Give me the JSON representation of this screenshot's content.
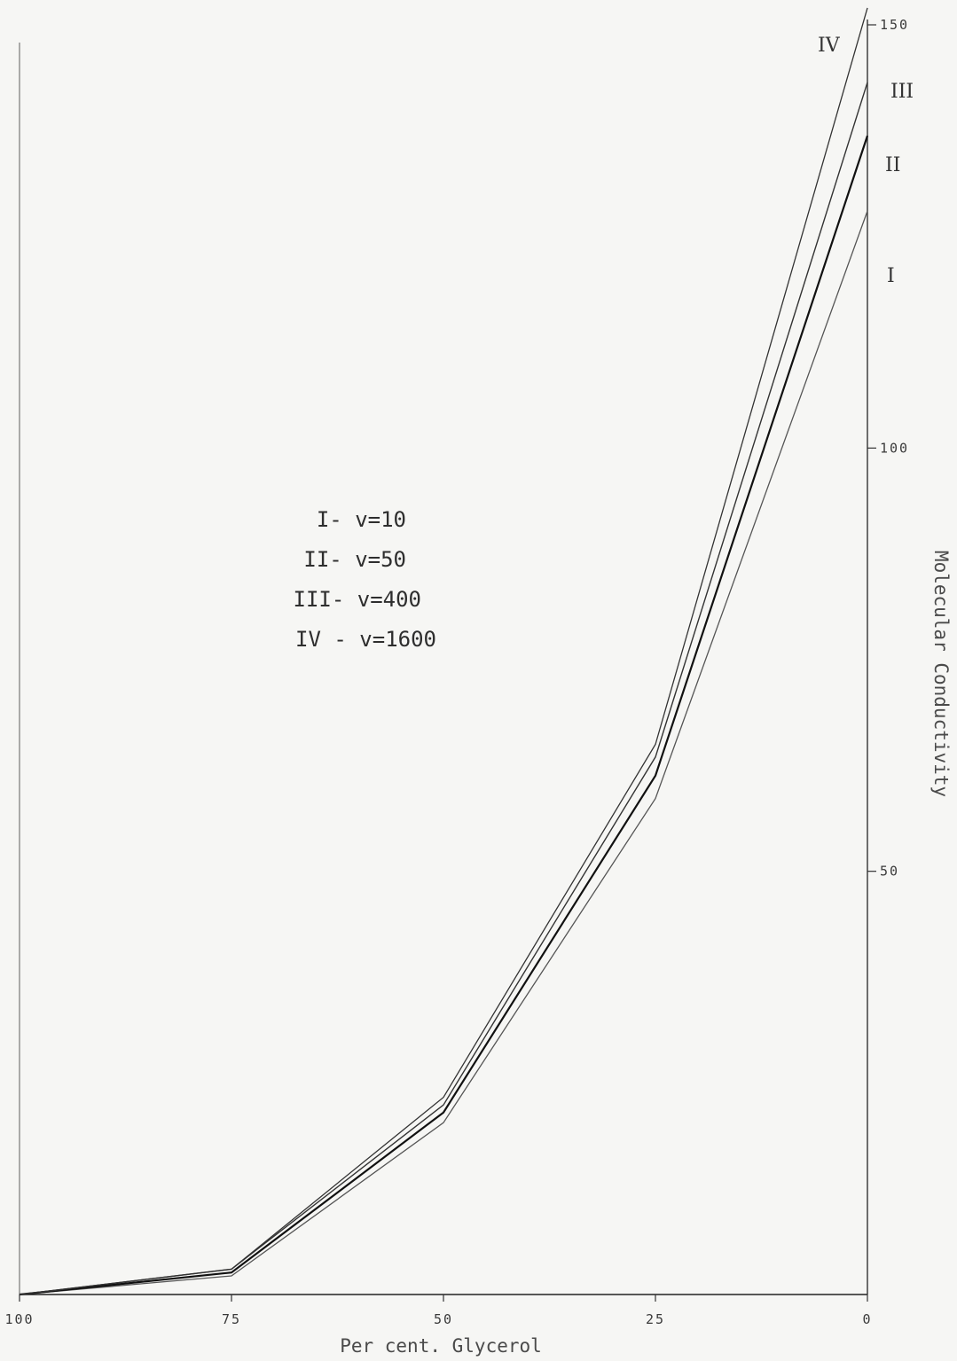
{
  "chart_data": {
    "type": "line",
    "xlabel": "Per cent. Glycerol",
    "ylabel": "Molecular Conductivity",
    "xlim": [
      100,
      0
    ],
    "ylim": [
      0,
      150
    ],
    "x_ticks": [
      "100",
      "75",
      "50",
      "25",
      "0"
    ],
    "y_ticks": [
      "50",
      "100",
      "150"
    ],
    "grid": false,
    "legend_placement": "center-left",
    "legend": [
      "I- v=10",
      "II- v=50",
      "III- v=400",
      "IV - v=1600"
    ],
    "x": [
      100,
      75,
      50,
      25,
      0
    ],
    "series": [
      {
        "name": "I",
        "values": [
          0,
          2.2,
          20.3,
          58.6,
          128.0
        ],
        "color": "#555555"
      },
      {
        "name": "II",
        "values": [
          0,
          2.6,
          21.5,
          61.3,
          136.9
        ],
        "color": "#111111"
      },
      {
        "name": "III",
        "values": [
          0,
          3.0,
          22.4,
          63.5,
          143.2
        ],
        "color": "#333333"
      },
      {
        "name": "IV",
        "values": [
          0,
          3.0,
          23.3,
          65.0,
          152.0
        ],
        "color": "#333333"
      }
    ]
  }
}
